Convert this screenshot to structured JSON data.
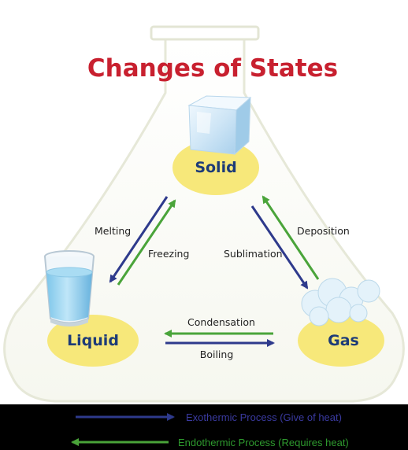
{
  "title": "Changes of States",
  "states": {
    "solid": "Solid",
    "liquid": "Liquid",
    "gas": "Gas"
  },
  "processes": {
    "melting": "Melting",
    "freezing": "Freezing",
    "sublimation": "Sublimation",
    "deposition": "Deposition",
    "condensation": "Condensation",
    "boiling": "Boiling"
  },
  "legend": {
    "exothermic": "Exothermic Process (Give of heat)",
    "endothermic": "Endothermic Process (Requires heat)"
  },
  "colors": {
    "title": "#c8202f",
    "state_label": "#1d3b78",
    "state_bubble": "#f7e87a",
    "exothermic_arrow": "#2e3a8c",
    "endothermic_arrow": "#4aa43a",
    "legend_exothermic_text": "#3a3aa0",
    "legend_endothermic_text": "#2e9a2e"
  }
}
